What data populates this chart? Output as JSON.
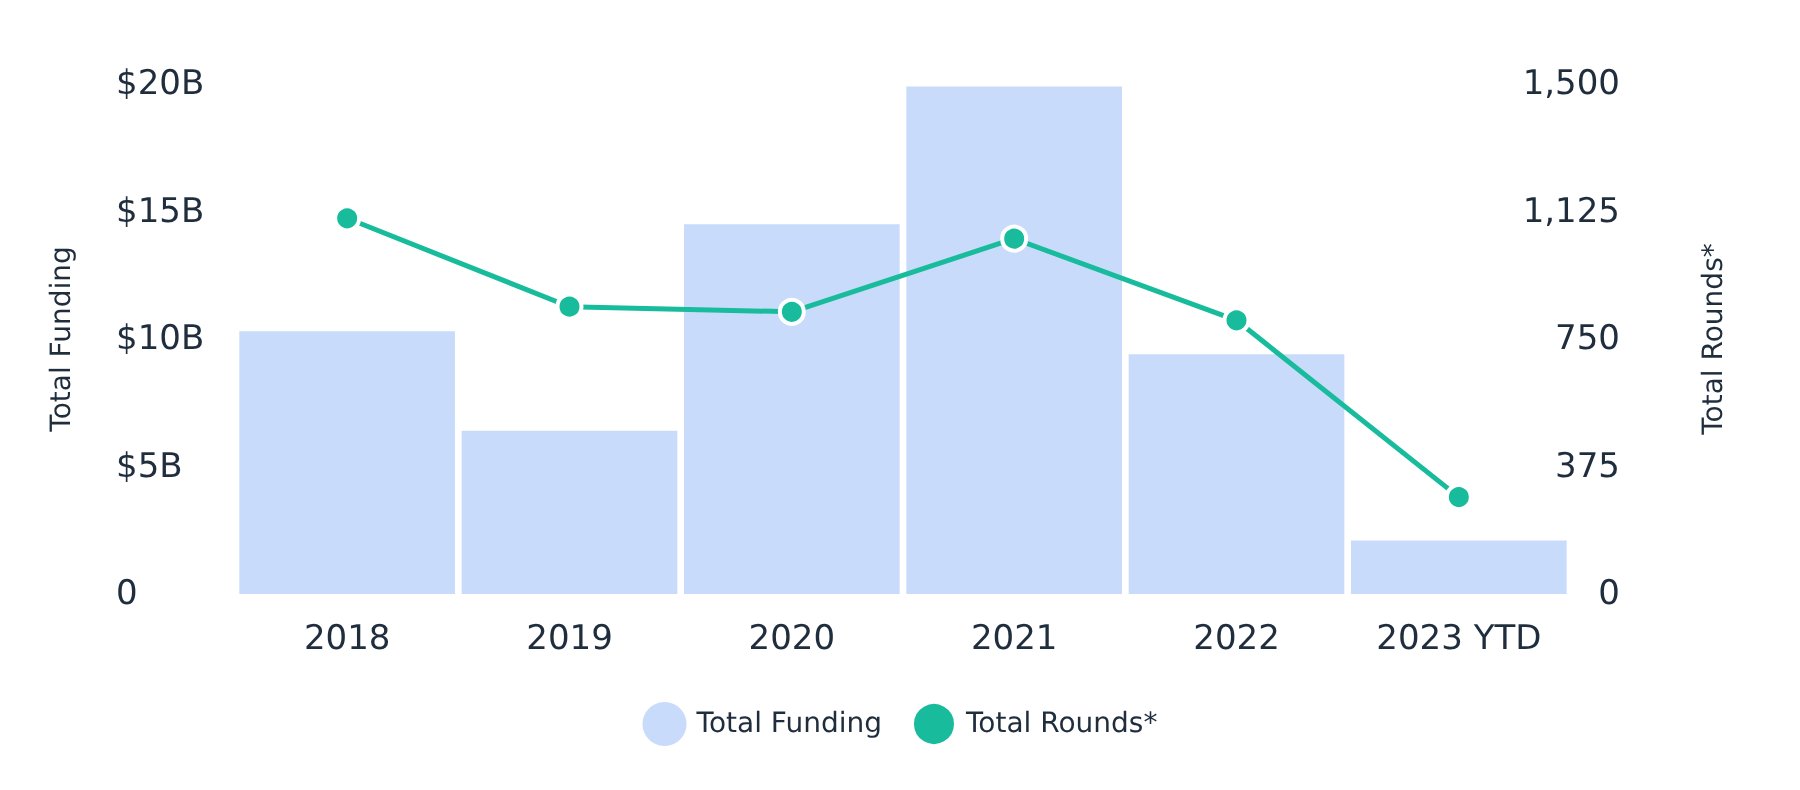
{
  "chart_data": {
    "type": "bar",
    "categories": [
      "2018",
      "2019",
      "2020",
      "2021",
      "2022",
      "2023 YTD"
    ],
    "series": [
      {
        "name": "Total Funding",
        "color": "#c9dbfa",
        "values": [
          10.3,
          6.4,
          14.5,
          19.9,
          9.4,
          2.1
        ]
      },
      {
        "name": "Total Rounds*",
        "type": "line",
        "axis": "y2",
        "color": "#18bc9c",
        "values": [
          1105,
          845,
          830,
          1045,
          805,
          285
        ]
      }
    ],
    "ylabel": "Total Funding",
    "y2label": "Total Rounds*",
    "ylim": [
      0,
      20
    ],
    "yticks": [
      {
        "value": 0,
        "label": "0"
      },
      {
        "value": 5,
        "label": "$5B"
      },
      {
        "value": 10,
        "label": "$10B"
      },
      {
        "value": 15,
        "label": "$15B"
      },
      {
        "value": 20,
        "label": "$20B"
      }
    ],
    "y2lim": [
      0,
      1500
    ],
    "y2ticks": [
      {
        "value": 0,
        "label": "0"
      },
      {
        "value": 375,
        "label": "375"
      },
      {
        "value": 750,
        "label": "750"
      },
      {
        "value": 1125,
        "label": "1,125"
      },
      {
        "value": 1500,
        "label": "1,500"
      }
    ],
    "grid": false,
    "legend": "bottom",
    "marker": "circle"
  }
}
